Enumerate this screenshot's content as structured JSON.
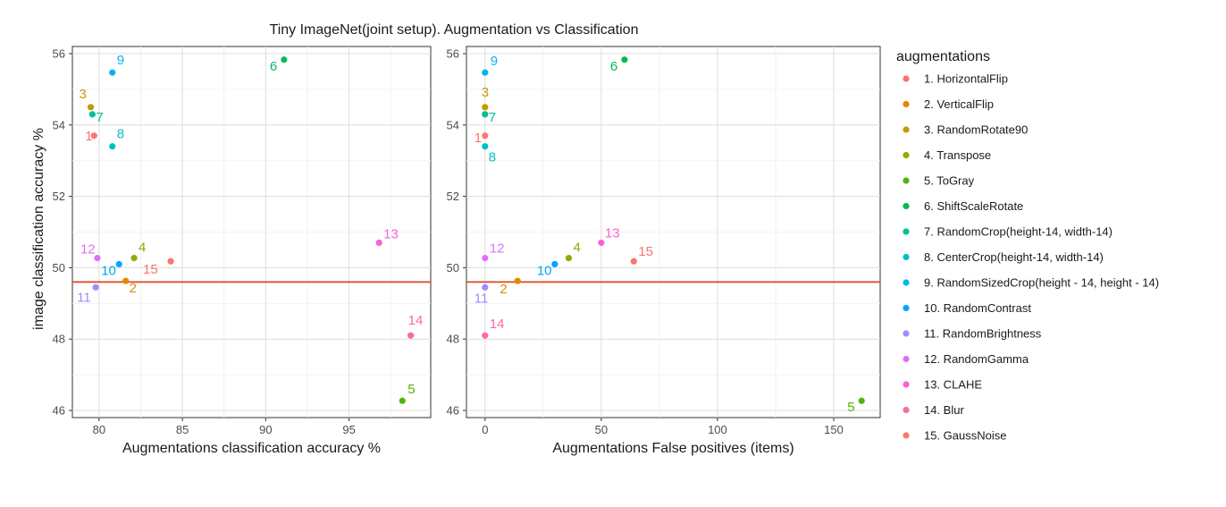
{
  "title": "Tiny ImageNet(joint setup). Augmentation vs Classification",
  "y_axis_label": "image classification accuracy %",
  "legend": {
    "title": "augmentations",
    "items": [
      {
        "label": "1. HorizontalFlip",
        "color": "#F8766D"
      },
      {
        "label": "2. VerticalFlip",
        "color": "#E38900"
      },
      {
        "label": "3. RandomRotate90",
        "color": "#C49A00"
      },
      {
        "label": "4. Transpose",
        "color": "#99A800"
      },
      {
        "label": "5. ToGray",
        "color": "#53B400"
      },
      {
        "label": "6. ShiftScaleRotate",
        "color": "#00BC56"
      },
      {
        "label": "7. RandomCrop(height-14, width-14)",
        "color": "#00C094"
      },
      {
        "label": "8. CenterCrop(height-14, width-14)",
        "color": "#00BFC4"
      },
      {
        "label": "9. RandomSizedCrop(height - 14, height - 14)",
        "color": "#00B6EB"
      },
      {
        "label": "10. RandomContrast",
        "color": "#06A4FF"
      },
      {
        "label": "11. RandomBrightness",
        "color": "#A58AFF"
      },
      {
        "label": "12. RandomGamma",
        "color": "#DF70F8"
      },
      {
        "label": "13. CLAHE",
        "color": "#FB61D7"
      },
      {
        "label": "14. Blur",
        "color": "#FF66A8"
      },
      {
        "label": "15. GaussNoise",
        "color": "#F8766D"
      }
    ]
  },
  "chart_data": [
    {
      "type": "scatter",
      "xlabel": "Augmentations classification accuracy %",
      "ylabel": "image classification accuracy %",
      "xlim": [
        78.4,
        99.9
      ],
      "ylim": [
        45.8,
        56.2
      ],
      "xticks": [
        80,
        85,
        90,
        95
      ],
      "yticks": [
        46,
        48,
        50,
        52,
        54,
        56
      ],
      "grid": true,
      "baseline": {
        "y": 49.6,
        "color": "#E0441F"
      },
      "points": [
        {
          "label": "1",
          "x": 79.7,
          "y": 53.7
        },
        {
          "label": "2",
          "x": 81.6,
          "y": 49.63
        },
        {
          "label": "3",
          "x": 79.5,
          "y": 54.5
        },
        {
          "label": "4",
          "x": 82.1,
          "y": 50.27
        },
        {
          "label": "5",
          "x": 98.2,
          "y": 46.27
        },
        {
          "label": "6",
          "x": 91.1,
          "y": 55.83
        },
        {
          "label": "7",
          "x": 79.6,
          "y": 54.3
        },
        {
          "label": "8",
          "x": 80.8,
          "y": 53.4
        },
        {
          "label": "9",
          "x": 80.8,
          "y": 55.47
        },
        {
          "label": "10",
          "x": 81.2,
          "y": 50.1
        },
        {
          "label": "11",
          "x": 79.8,
          "y": 49.45
        },
        {
          "label": "12",
          "x": 79.9,
          "y": 50.27
        },
        {
          "label": "13",
          "x": 96.8,
          "y": 50.7
        },
        {
          "label": "14",
          "x": 98.7,
          "y": 48.1
        },
        {
          "label": "15",
          "x": 84.3,
          "y": 50.18
        }
      ]
    },
    {
      "type": "scatter",
      "xlabel": "Augmentations False positives (items)",
      "ylabel": "",
      "xlim": [
        -8,
        170
      ],
      "ylim": [
        45.8,
        56.2
      ],
      "xticks": [
        0,
        50,
        100,
        150
      ],
      "yticks": [
        46,
        48,
        50,
        52,
        54,
        56
      ],
      "grid": true,
      "baseline": {
        "y": 49.6,
        "color": "#E0441F"
      },
      "points": [
        {
          "label": "1",
          "x": 0,
          "y": 53.7
        },
        {
          "label": "2",
          "x": 14,
          "y": 49.63
        },
        {
          "label": "3",
          "x": 0,
          "y": 54.5
        },
        {
          "label": "4",
          "x": 36,
          "y": 50.27
        },
        {
          "label": "5",
          "x": 162,
          "y": 46.27
        },
        {
          "label": "6",
          "x": 60,
          "y": 55.83
        },
        {
          "label": "7",
          "x": 0,
          "y": 54.3
        },
        {
          "label": "8",
          "x": 0,
          "y": 53.4
        },
        {
          "label": "9",
          "x": 0,
          "y": 55.47
        },
        {
          "label": "10",
          "x": 30,
          "y": 50.1
        },
        {
          "label": "11",
          "x": 0,
          "y": 49.45
        },
        {
          "label": "12",
          "x": 0,
          "y": 50.27
        },
        {
          "label": "13",
          "x": 50,
          "y": 50.7
        },
        {
          "label": "14",
          "x": 0,
          "y": 48.1
        },
        {
          "label": "15",
          "x": 64,
          "y": 50.18
        }
      ]
    }
  ]
}
